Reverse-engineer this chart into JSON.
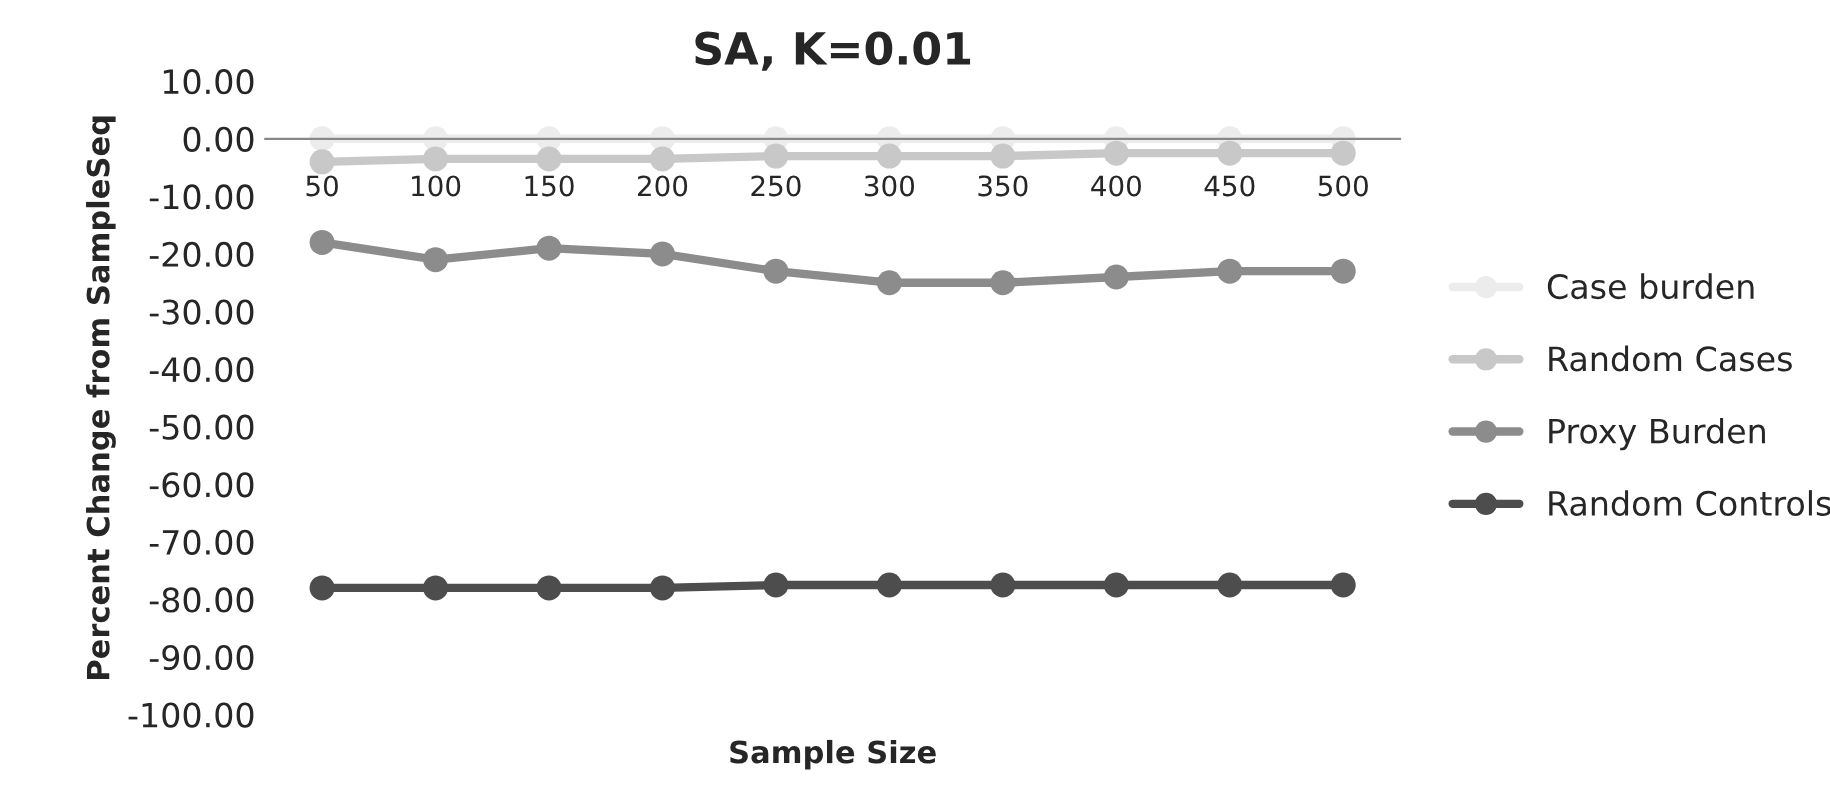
{
  "chart_data": {
    "type": "line",
    "title": "SA, K=0.01",
    "xlabel": "Sample Size",
    "ylabel": "Percent Change from SampleSeq",
    "categories": [
      "50",
      "100",
      "150",
      "200",
      "250",
      "300",
      "350",
      "400",
      "450",
      "500"
    ],
    "series": [
      {
        "name": "Case burden",
        "color": "#ececec",
        "values": [
          0,
          0,
          0,
          0,
          0,
          0,
          0,
          0,
          0,
          0
        ]
      },
      {
        "name": "Random Cases",
        "color": "#c8c8c8",
        "values": [
          -4,
          -3.5,
          -3.5,
          -3.5,
          -3,
          -3,
          -3,
          -2.5,
          -2.5,
          -2.5
        ]
      },
      {
        "name": "Proxy Burden",
        "color": "#8c8c8c",
        "values": [
          -18,
          -21,
          -19,
          -20,
          -23,
          -25,
          -25,
          -24,
          -23,
          -23
        ]
      },
      {
        "name": "Random Controls",
        "color": "#4d4d4d",
        "values": [
          -78,
          -78,
          -78,
          -78,
          -77.5,
          -77.5,
          -77.5,
          -77.5,
          -77.5,
          -77.5
        ]
      }
    ],
    "ylim": [
      -100,
      10
    ],
    "yticks": [
      {
        "value": 10,
        "label": "10.00"
      },
      {
        "value": 0,
        "label": "0.00"
      },
      {
        "value": -10,
        "label": "-10.00"
      },
      {
        "value": -20,
        "label": "-20.00"
      },
      {
        "value": -30,
        "label": "-30.00"
      },
      {
        "value": -40,
        "label": "-40.00"
      },
      {
        "value": -50,
        "label": "-50.00"
      },
      {
        "value": -60,
        "label": "-60.00"
      },
      {
        "value": -70,
        "label": "-70.00"
      },
      {
        "value": -80,
        "label": "-80.00"
      },
      {
        "value": -90,
        "label": "-90.00"
      },
      {
        "value": -100,
        "label": "-100.00"
      }
    ],
    "grid": false,
    "legend": "right",
    "marker": "circle",
    "line_style": "solid"
  }
}
